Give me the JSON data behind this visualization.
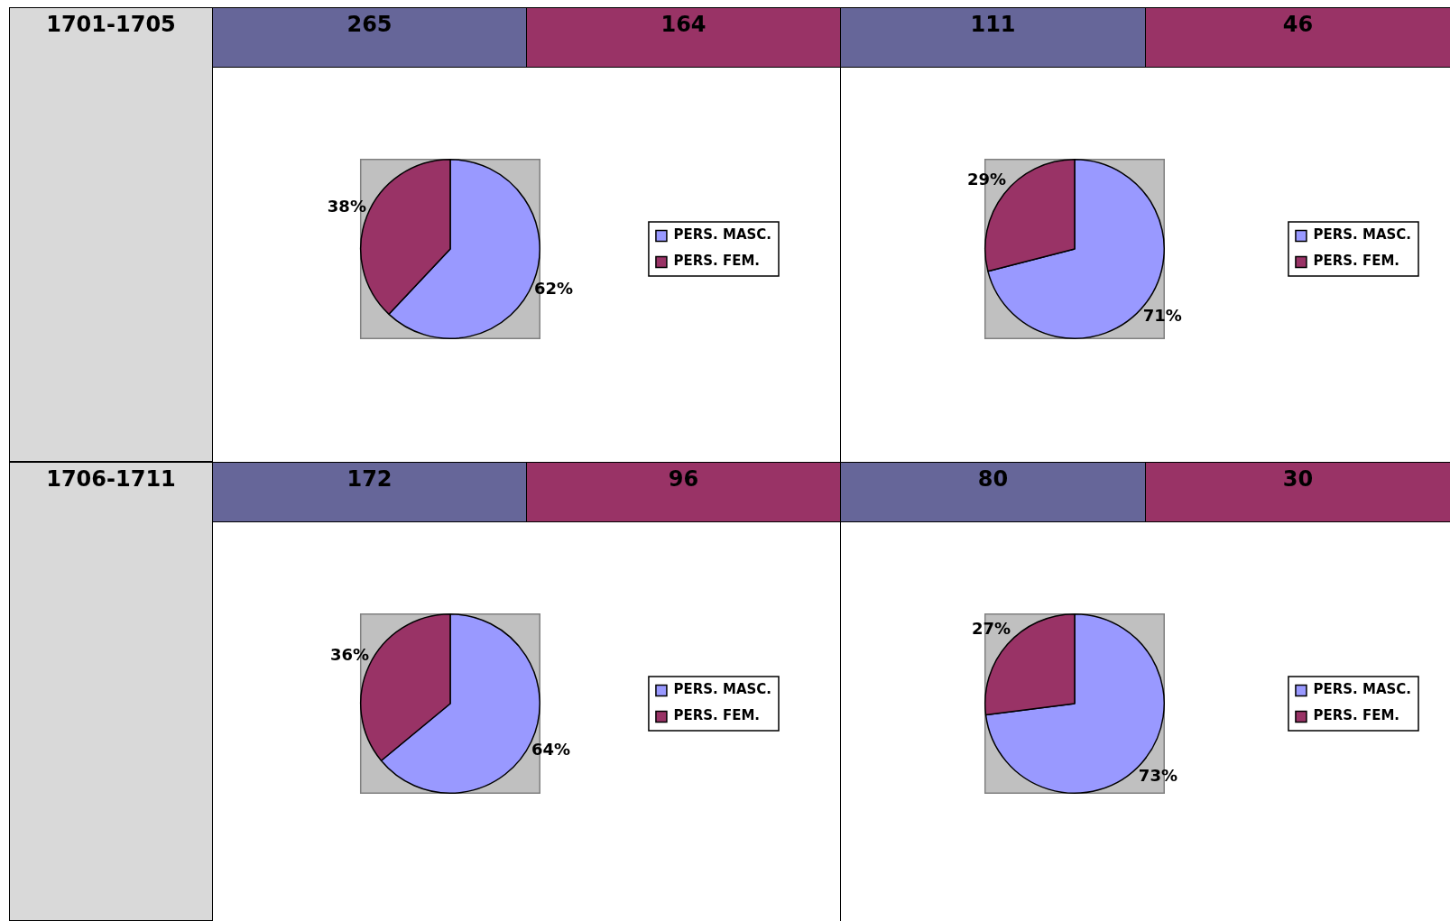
{
  "chart_data": [
    {
      "type": "pie",
      "categories": [
        "PERS. MASC.",
        "PERS. FEM."
      ],
      "values": [
        62,
        38
      ],
      "colors": [
        "#9999ff",
        "#993366"
      ],
      "value_labels": [
        "62%",
        "38%"
      ],
      "legend": "right",
      "annotations": [
        "1701-1705",
        "265",
        "164"
      ]
    },
    {
      "type": "pie",
      "categories": [
        "PERS. MASC.",
        "PERS. FEM."
      ],
      "values": [
        71,
        29
      ],
      "colors": [
        "#9999ff",
        "#993366"
      ],
      "value_labels": [
        "71%",
        "29%"
      ],
      "legend": "right",
      "annotations": [
        "111",
        "46"
      ]
    },
    {
      "type": "pie",
      "categories": [
        "PERS. MASC.",
        "PERS. FEM."
      ],
      "values": [
        64,
        36
      ],
      "colors": [
        "#9999ff",
        "#993366"
      ],
      "value_labels": [
        "64%",
        "36%"
      ],
      "legend": "right",
      "annotations": [
        "1706-1711",
        "172",
        "96"
      ]
    },
    {
      "type": "pie",
      "categories": [
        "PERS. MASC.",
        "PERS. FEM."
      ],
      "values": [
        73,
        27
      ],
      "colors": [
        "#9999ff",
        "#993366"
      ],
      "value_labels": [
        "73%",
        "27%"
      ],
      "legend": "right",
      "annotations": [
        "80",
        "30"
      ]
    }
  ]
}
